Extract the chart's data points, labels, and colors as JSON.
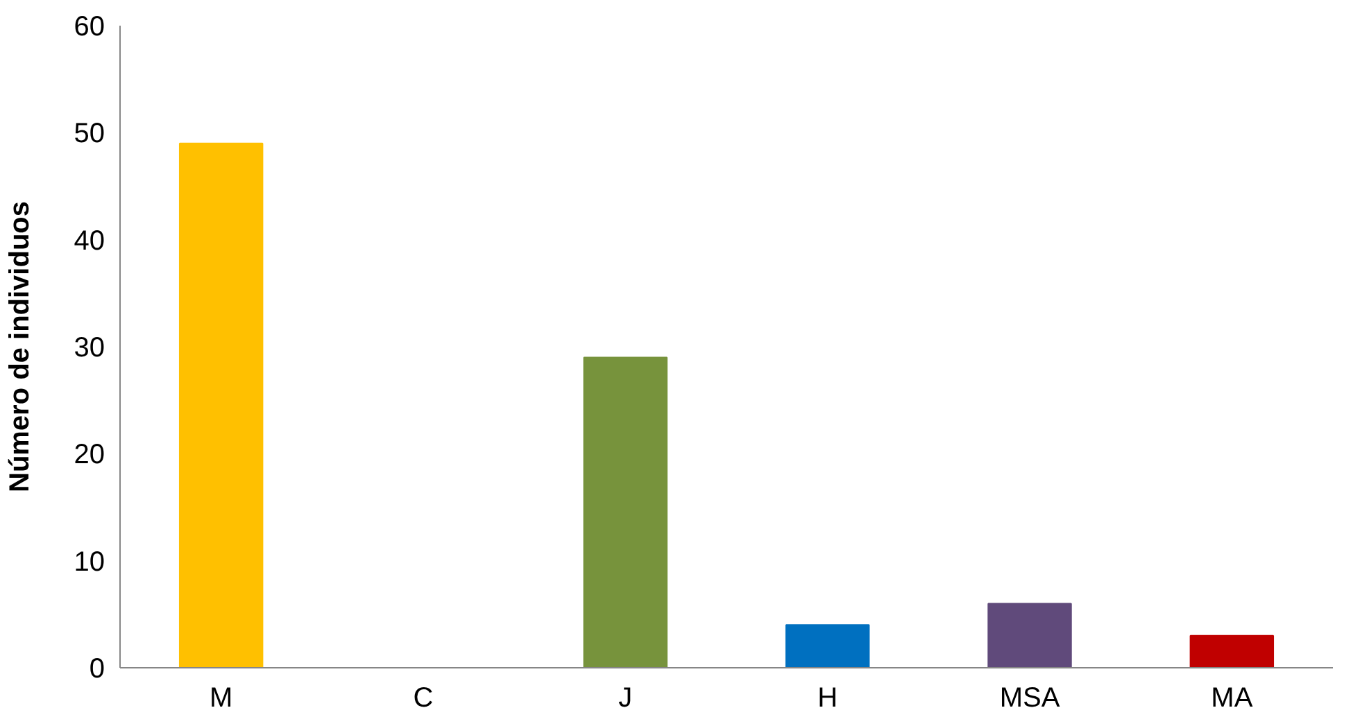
{
  "chart_data": {
    "type": "bar",
    "ylabel": "Número de individuos",
    "categories": [
      "M",
      "C",
      "J",
      "H",
      "MSA",
      "MA"
    ],
    "values": [
      49,
      0,
      29,
      4,
      6,
      3
    ],
    "colors": [
      "#ffc000",
      "#77933c",
      "#77933c",
      "#0070c0",
      "#604a7b",
      "#c00000"
    ],
    "ylim": [
      0,
      60
    ],
    "yticks": [
      0,
      10,
      20,
      30,
      40,
      50,
      60
    ],
    "grid": false
  }
}
